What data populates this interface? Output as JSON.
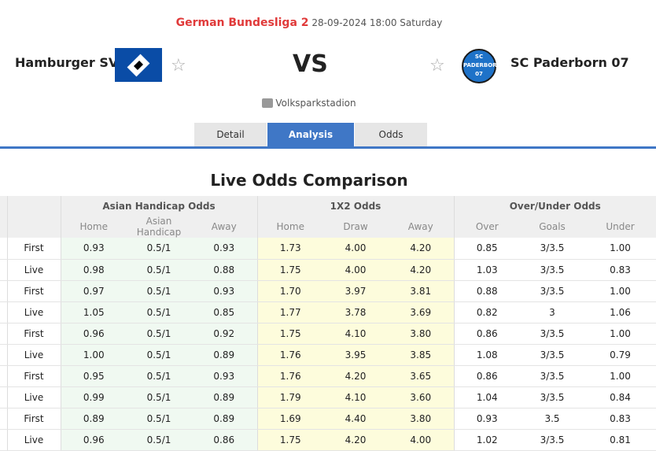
{
  "header": {
    "league": "German Bundesliga 2",
    "datetime": "28-09-2024 18:00 Saturday",
    "home_team": "Hamburger SV",
    "away_team": "SC Paderborn 07",
    "vs": "VS",
    "venue": "Volksparkstadion",
    "away_logo_text": "SC PADERBORN 07"
  },
  "tabs": [
    {
      "label": "Detail"
    },
    {
      "label": "Analysis",
      "active": true
    },
    {
      "label": "Odds"
    }
  ],
  "section_title": "Live Odds Comparison",
  "table": {
    "groups": [
      "Asian Handicap Odds",
      "1X2 Odds",
      "Over/Under Odds"
    ],
    "columns": [
      "Home",
      "Asian Handicap",
      "Away",
      "Home",
      "Draw",
      "Away",
      "Over",
      "Goals",
      "Under"
    ],
    "rows": [
      [
        "First",
        "0.93",
        "0.5/1",
        "0.93",
        "1.73",
        "4.00",
        "4.20",
        "0.85",
        "3/3.5",
        "1.00"
      ],
      [
        "Live",
        "0.98",
        "0.5/1",
        "0.88",
        "1.75",
        "4.00",
        "4.20",
        "1.03",
        "3/3.5",
        "0.83"
      ],
      [
        "First",
        "0.97",
        "0.5/1",
        "0.93",
        "1.70",
        "3.97",
        "3.81",
        "0.88",
        "3/3.5",
        "1.00"
      ],
      [
        "Live",
        "1.05",
        "0.5/1",
        "0.85",
        "1.77",
        "3.78",
        "3.69",
        "0.82",
        "3",
        "1.06"
      ],
      [
        "First",
        "0.96",
        "0.5/1",
        "0.92",
        "1.75",
        "4.10",
        "3.80",
        "0.86",
        "3/3.5",
        "1.00"
      ],
      [
        "Live",
        "1.00",
        "0.5/1",
        "0.89",
        "1.76",
        "3.95",
        "3.85",
        "1.08",
        "3/3.5",
        "0.79"
      ],
      [
        "First",
        "0.95",
        "0.5/1",
        "0.93",
        "1.76",
        "4.20",
        "3.65",
        "0.86",
        "3/3.5",
        "1.00"
      ],
      [
        "Live",
        "0.99",
        "0.5/1",
        "0.89",
        "1.79",
        "4.10",
        "3.60",
        "1.04",
        "3/3.5",
        "0.84"
      ],
      [
        "First",
        "0.89",
        "0.5/1",
        "0.89",
        "1.69",
        "4.40",
        "3.80",
        "0.93",
        "3.5",
        "0.83"
      ],
      [
        "Live",
        "0.96",
        "0.5/1",
        "0.86",
        "1.75",
        "4.20",
        "4.00",
        "1.02",
        "3/3.5",
        "0.81"
      ]
    ]
  },
  "colors": {
    "accent": "#3f77c6",
    "league": "#e03a3a",
    "ah_bg": "#f0f9f1",
    "x2_bg": "#fdfcdc"
  }
}
